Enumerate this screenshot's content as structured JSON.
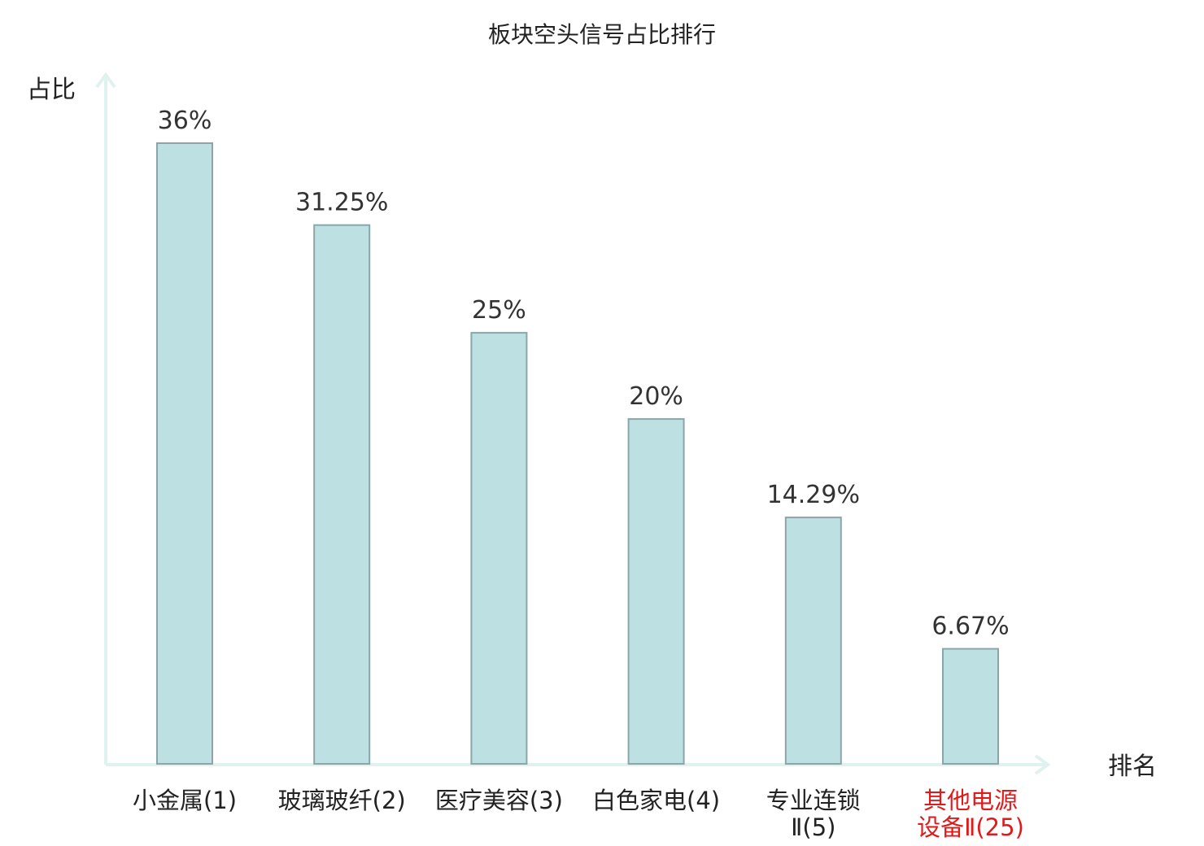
{
  "chart_data": {
    "type": "bar",
    "title": "板块空头信号占比排行",
    "ylabel": "占比",
    "xlabel": "排名",
    "categories": [
      [
        "小金属(1)"
      ],
      [
        "玻璃玻纤(2)"
      ],
      [
        "医疗美容(3)"
      ],
      [
        "白色家电(4)"
      ],
      [
        "专业连锁",
        "Ⅱ(5)"
      ],
      [
        "其他电源",
        "设备Ⅱ(25)"
      ]
    ],
    "values": [
      36,
      31.25,
      25,
      20,
      14.29,
      6.67
    ],
    "value_labels": [
      "36%",
      "31.25%",
      "25%",
      "20%",
      "14.29%",
      "6.67%"
    ],
    "highlight_index": 5,
    "ylim": [
      0,
      40
    ],
    "grid": false,
    "colors": {
      "bar_fill": "#bde1e3",
      "bar_stroke": "#8aa6a8",
      "axis": "#dff2ef",
      "highlight_label": "#e01a1a"
    }
  }
}
